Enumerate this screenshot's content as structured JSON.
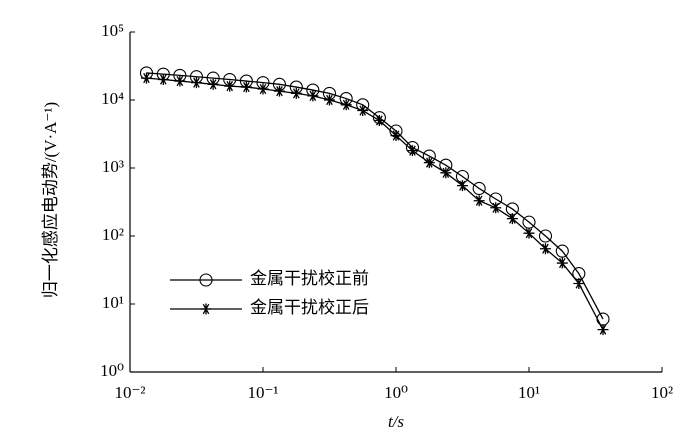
{
  "chart_data": {
    "type": "line",
    "y_label": "归一化感应电动势/(V·A⁻¹)",
    "x_label": "t/s",
    "log_x": true,
    "log_y": true,
    "grid": false,
    "legend": "lower left",
    "x": [
      0.0133,
      0.0178,
      0.0237,
      0.0316,
      0.0422,
      0.0562,
      0.075,
      0.1,
      0.133,
      0.178,
      0.237,
      0.316,
      0.422,
      0.562,
      0.75,
      1.0,
      1.33,
      1.78,
      2.37,
      3.16,
      4.22,
      5.62,
      7.5,
      10,
      13.3,
      17.8,
      23.7,
      36
    ],
    "series": [
      {
        "name": "金属干扰校正前",
        "color": "#000000",
        "marker": "circle",
        "values": [
          25000,
          24000,
          23000,
          22000,
          21000,
          20000,
          19000,
          18000,
          17000,
          15500,
          14000,
          12500,
          10500,
          8500,
          5500,
          3500,
          2000,
          1500,
          1100,
          750,
          500,
          350,
          250,
          160,
          100,
          60,
          28,
          6
        ]
      },
      {
        "name": "金属干扰校正后",
        "color": "#000000",
        "marker": "star",
        "values": [
          21000,
          20000,
          19000,
          18000,
          17000,
          16000,
          15500,
          14500,
          13500,
          12500,
          11500,
          10000,
          8500,
          7000,
          5000,
          3000,
          1800,
          1200,
          850,
          550,
          330,
          260,
          180,
          110,
          65,
          40,
          20,
          4.2
        ]
      }
    ],
    "xlim": [
      0.01,
      100
    ],
    "xticks": [
      {
        "value": 0.01,
        "label": "10⁻²"
      },
      {
        "value": 0.1,
        "label": "10⁻¹"
      },
      {
        "value": 1,
        "label": "10⁰"
      },
      {
        "value": 10,
        "label": "10¹"
      },
      {
        "value": 100,
        "label": "10²"
      }
    ],
    "ylim": [
      1,
      100000
    ],
    "yticks": [
      {
        "value": 1,
        "label": "10⁰"
      },
      {
        "value": 10,
        "label": "10¹"
      },
      {
        "value": 100,
        "label": "10²"
      },
      {
        "value": 1000,
        "label": "10³"
      },
      {
        "value": 10000,
        "label": "10⁴"
      },
      {
        "value": 100000,
        "label": "10⁵"
      }
    ]
  }
}
